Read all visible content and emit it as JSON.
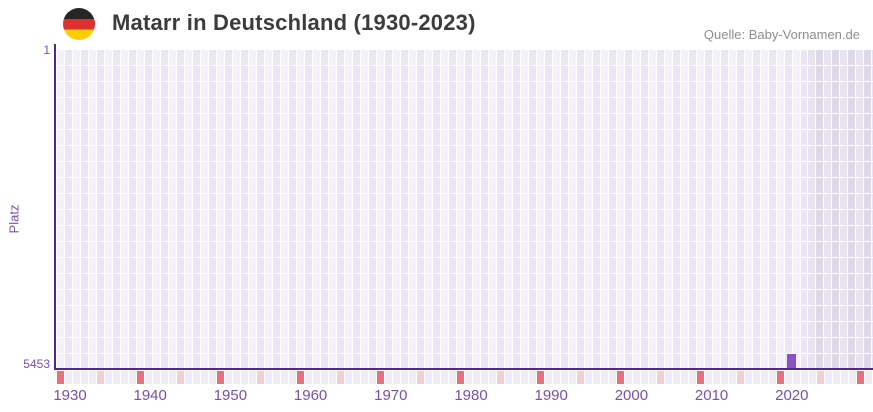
{
  "header": {
    "title": "Matarr in Deutschland (1930-2023)",
    "source": "Quelle: Baby-Vornamen.de",
    "flag_icon": "germany-flag-roundel"
  },
  "chart_data": {
    "type": "scatter",
    "title": "Matarr in Deutschland (1930-2023)",
    "name": "Matarr",
    "region": "Deutschland",
    "xlabel": "",
    "ylabel": "Platz",
    "x_range": [
      1930,
      2023
    ],
    "x_ticks": [
      "1930",
      "1940",
      "1950",
      "1960",
      "1970",
      "1980",
      "1990",
      "2000",
      "2010",
      "2020"
    ],
    "y_axis": {
      "top_tick": "1",
      "bottom_tick": "5453",
      "min": 1,
      "max": 5453,
      "inverted": true
    },
    "series": [
      {
        "name": "Matarr",
        "points": [
          {
            "year": 2020,
            "platz": 5453
          }
        ]
      }
    ],
    "timeline_ticks": {
      "start": 1930,
      "end": 2032,
      "major_every": 10,
      "minor_every": 5
    },
    "grid": true,
    "legend_position": "none",
    "no_data_region_start": 2024,
    "colors": {
      "marker": "#8a52c4",
      "axis_line": "#4f2a85",
      "axis_label": "#7a50a8",
      "major_tick_cell": "#e4717d",
      "minor_tick_cell": "#f3ced7",
      "plain_tick_cell": "#efecf7",
      "grid_light": "#f3f0fa",
      "grid_alt": "#eae6f5",
      "future_grid_light": "#e7e4ef",
      "future_grid_alt": "#ded9e8",
      "title_text": "#3c3c3c",
      "source_text": "#8d8d8d",
      "flag_black": "#262626",
      "flag_red": "#dd3030",
      "flag_gold": "#ffce00"
    }
  }
}
